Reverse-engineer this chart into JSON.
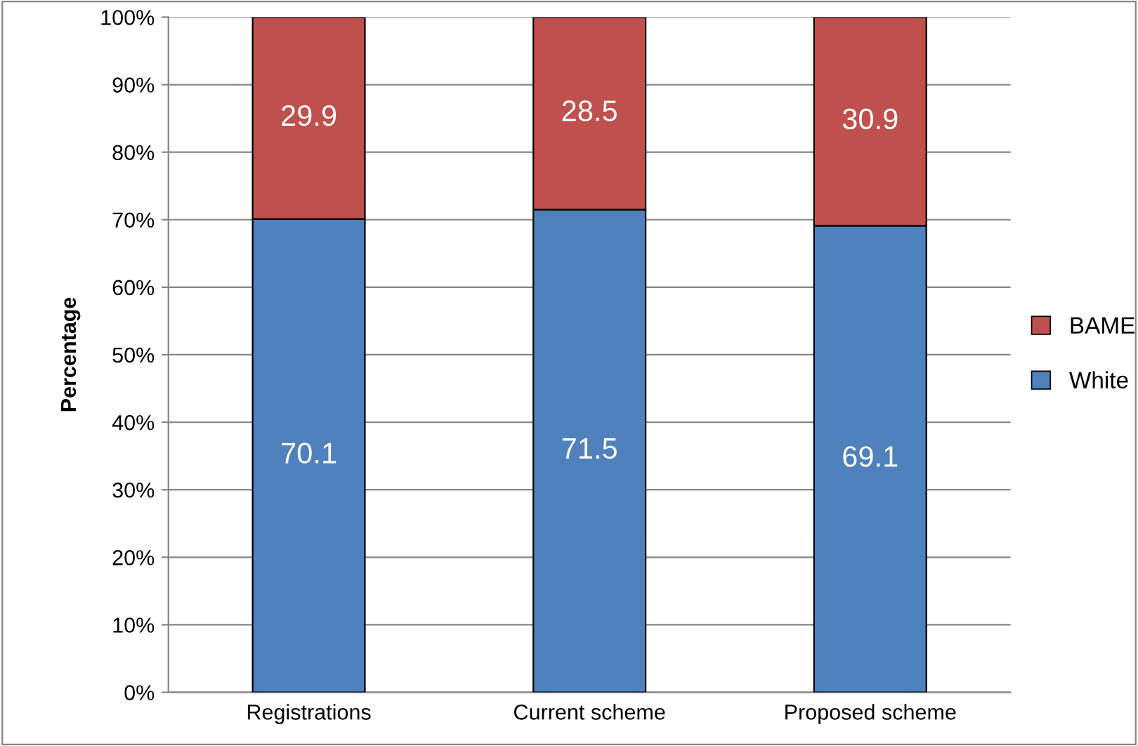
{
  "chart_data": {
    "type": "bar",
    "stacked": true,
    "ylabel": "Percentage",
    "categories": [
      "Registrations",
      "Current scheme",
      "Proposed scheme"
    ],
    "series": [
      {
        "name": "White",
        "color": "#4f81bd",
        "values": [
          70.1,
          71.5,
          69.1
        ]
      },
      {
        "name": "BAME",
        "color": "#c0504d",
        "values": [
          29.9,
          28.5,
          30.9
        ]
      }
    ],
    "ylim": [
      0,
      100
    ],
    "yticks": [
      {
        "value": 0,
        "label": "0%"
      },
      {
        "value": 10,
        "label": "10%"
      },
      {
        "value": 20,
        "label": "20%"
      },
      {
        "value": 30,
        "label": "30%"
      },
      {
        "value": 40,
        "label": "40%"
      },
      {
        "value": 50,
        "label": "50%"
      },
      {
        "value": 60,
        "label": "60%"
      },
      {
        "value": 70,
        "label": "70%"
      },
      {
        "value": 80,
        "label": "80%"
      },
      {
        "value": 90,
        "label": "90%"
      },
      {
        "value": 100,
        "label": "100%"
      }
    ],
    "grid": "y",
    "legend": "right",
    "data_labels": true
  }
}
